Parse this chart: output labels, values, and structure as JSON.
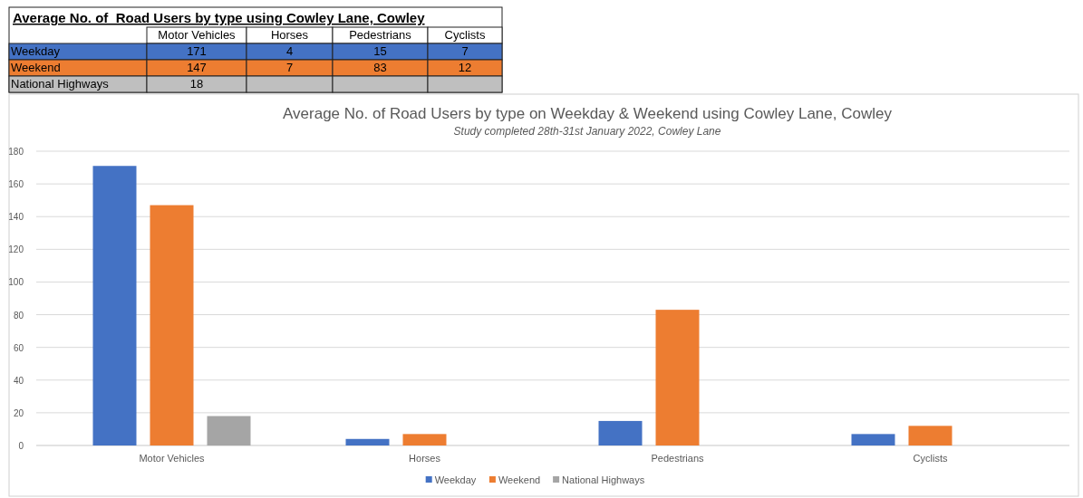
{
  "chart_data": [
    {
      "type": "other",
      "title": "Average No. of  Road Users by type using Cowley Lane, Cowley",
      "categories": [
        "Motor Vehicles",
        "Horses",
        "Pedestrians",
        "Cyclists"
      ],
      "series": [
        {
          "name": "Weekday",
          "color": "#4472c4",
          "values": [
            171,
            4,
            15,
            7
          ]
        },
        {
          "name": "Weekend",
          "color": "#ed7d31",
          "values": [
            147,
            7,
            83,
            12
          ]
        },
        {
          "name": "National Highways",
          "color": "#bfbfbf",
          "values": [
            18,
            null,
            null,
            null
          ]
        }
      ],
      "data_labels": true
    },
    {
      "type": "bar",
      "title": "Average No. of Road Users by type on Weekday & Weekend using Cowley Lane, Cowley",
      "subtitle": "Study completed 28th-31st January 2022, Cowley Lane",
      "categories": [
        "Motor Vehicles",
        "Horses",
        "Pedestrians",
        "Cyclists"
      ],
      "series": [
        {
          "name": "Weekday",
          "color": "#4472c4",
          "values": [
            171,
            4,
            15,
            7
          ]
        },
        {
          "name": "Weekend",
          "color": "#ed7d31",
          "values": [
            147,
            7,
            83,
            12
          ]
        },
        {
          "name": "National Highways",
          "color": "#a5a5a5",
          "values": [
            18,
            null,
            null,
            null
          ]
        }
      ],
      "ylim": [
        0,
        180
      ],
      "yticks": [
        0,
        20,
        40,
        60,
        80,
        100,
        120,
        140,
        160,
        180
      ],
      "grid": "y",
      "legend": "bottom"
    }
  ]
}
